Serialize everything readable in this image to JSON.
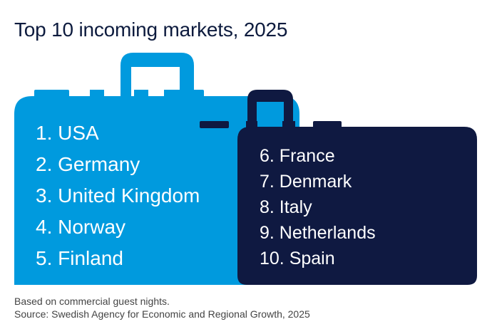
{
  "title": "Top 10 incoming markets, 2025",
  "colors": {
    "suitcase_left": "#009ADE",
    "suitcase_right": "#0F1941",
    "title": "#0d1b3e"
  },
  "suitcase_left_items": [
    "1. USA",
    "2. Germany",
    "3. United Kingdom",
    "4. Norway",
    "5. Finland"
  ],
  "suitcase_right_items": [
    "6. France",
    "7. Denmark",
    "8. Italy",
    "9. Netherlands",
    "10. Spain"
  ],
  "footnote": "Based on commercial guest nights.",
  "source": "Source: Swedish Agency for Economic and Regional Growth, 2025"
}
